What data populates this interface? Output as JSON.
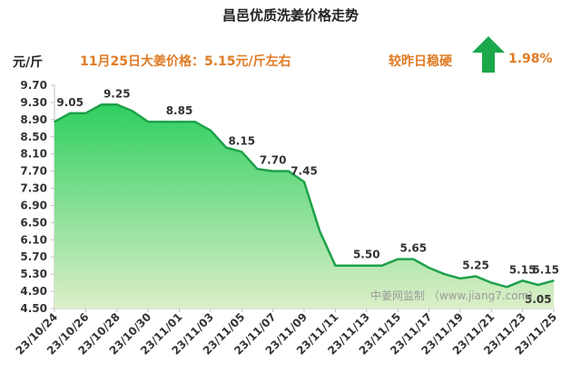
{
  "header": {
    "title": "昌邑优质洗姜价格走势",
    "unit": "元/斤",
    "price_note": "11月25日大姜价格：5.15元/斤左右",
    "trend_note": "较昨日稳硬",
    "change_pct": "1.98%"
  },
  "colors": {
    "line": "#1fa14a",
    "fill_top": "#2fcf60",
    "fill_bottom": "#dcefc8",
    "accent": "#e07b24",
    "arrow": "#1aa84b"
  },
  "icons": {
    "trend": "up-arrow-icon"
  },
  "watermark": "中姜网监制 （www.jiang7.com）",
  "chart_data": {
    "type": "area",
    "title": "昌邑优质洗姜价格走势",
    "ylabel": "元/斤",
    "ylim": [
      4.5,
      9.7
    ],
    "y_ticks": [
      "9.70",
      "9.30",
      "8.90",
      "8.50",
      "8.10",
      "7.70",
      "7.30",
      "6.90",
      "6.50",
      "6.10",
      "5.70",
      "5.30",
      "4.90",
      "4.50"
    ],
    "x_tick_labels": [
      "23/10/24",
      "23/10/26",
      "23/10/28",
      "23/10/30",
      "23/11/01",
      "23/11/03",
      "23/11/05",
      "23/11/07",
      "23/11/09",
      "23/11/11",
      "23/11/13",
      "23/11/15",
      "23/11/17",
      "23/11/19",
      "23/11/21",
      "23/11/23",
      "23/11/25"
    ],
    "x": [
      "23/10/24",
      "23/10/25",
      "23/10/26",
      "23/10/27",
      "23/10/28",
      "23/10/29",
      "23/10/30",
      "23/10/31",
      "23/11/01",
      "23/11/02",
      "23/11/03",
      "23/11/04",
      "23/11/05",
      "23/11/06",
      "23/11/07",
      "23/11/08",
      "23/11/09",
      "23/11/10",
      "23/11/11",
      "23/11/12",
      "23/11/13",
      "23/11/14",
      "23/11/15",
      "23/11/16",
      "23/11/17",
      "23/11/18",
      "23/11/19",
      "23/11/20",
      "23/11/21",
      "23/11/22",
      "23/11/23",
      "23/11/24",
      "23/11/25"
    ],
    "values": [
      8.85,
      9.05,
      9.05,
      9.25,
      9.25,
      9.1,
      8.85,
      8.85,
      8.85,
      8.85,
      8.65,
      8.25,
      8.15,
      7.75,
      7.7,
      7.7,
      7.45,
      6.3,
      5.5,
      5.5,
      5.5,
      5.5,
      5.65,
      5.65,
      5.45,
      5.3,
      5.2,
      5.25,
      5.1,
      5.0,
      5.15,
      5.05,
      5.15
    ],
    "data_labels": [
      {
        "x": "23/10/25",
        "text": "9.05"
      },
      {
        "x": "23/10/28",
        "text": "9.25"
      },
      {
        "x": "23/11/01",
        "text": "8.85"
      },
      {
        "x": "23/11/05",
        "text": "8.15"
      },
      {
        "x": "23/11/07",
        "text": "7.70"
      },
      {
        "x": "23/11/09",
        "text": "7.45"
      },
      {
        "x": "23/11/13",
        "text": "5.50"
      },
      {
        "x": "23/11/16",
        "text": "5.65"
      },
      {
        "x": "23/11/20",
        "text": "5.25"
      },
      {
        "x": "23/11/23",
        "text": "5.15"
      },
      {
        "x": "23/11/24",
        "text": "5.05"
      },
      {
        "x": "23/11/25",
        "text": "5.15"
      }
    ],
    "grid": false,
    "legend": "none"
  }
}
